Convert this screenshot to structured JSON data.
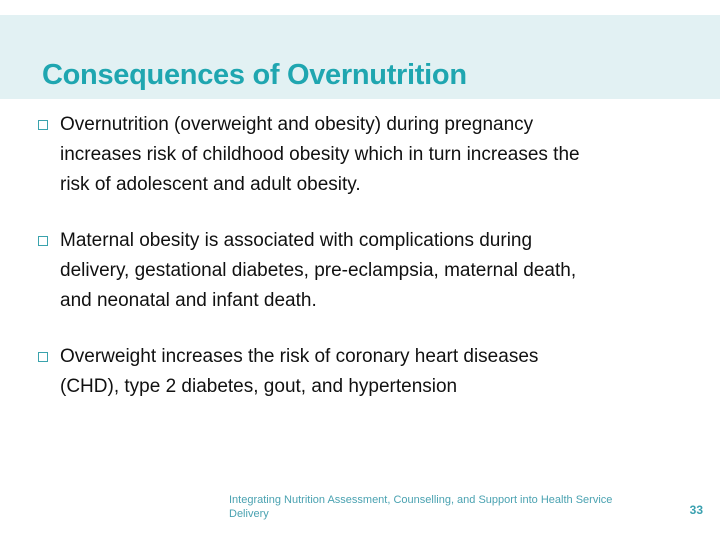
{
  "slide": {
    "title": "Consequences of Overnutrition",
    "bullets": [
      "Overnutrition (overweight and obesity) during pregnancy\nincreases risk of childhood obesity which in turn increases the\nrisk of adolescent and adult obesity.",
      "Maternal obesity is associated with complications during\ndelivery, gestational diabetes, pre-eclampsia, maternal death,\nand neonatal and infant death.",
      "Overweight increases the risk of coronary heart diseases\n(CHD), type 2 diabetes, gout, and hypertension"
    ],
    "footer": {
      "text": "Integrating Nutrition Assessment, Counselling, and Support into Health Service\nDelivery",
      "page_number": "33"
    },
    "colors": {
      "title_teal": "#1fa6b0",
      "band_background": "#e2f1f3",
      "bullet_outline": "#3aa3ad",
      "body_text": "#111111",
      "footer_teal": "#4aa2b1"
    }
  }
}
